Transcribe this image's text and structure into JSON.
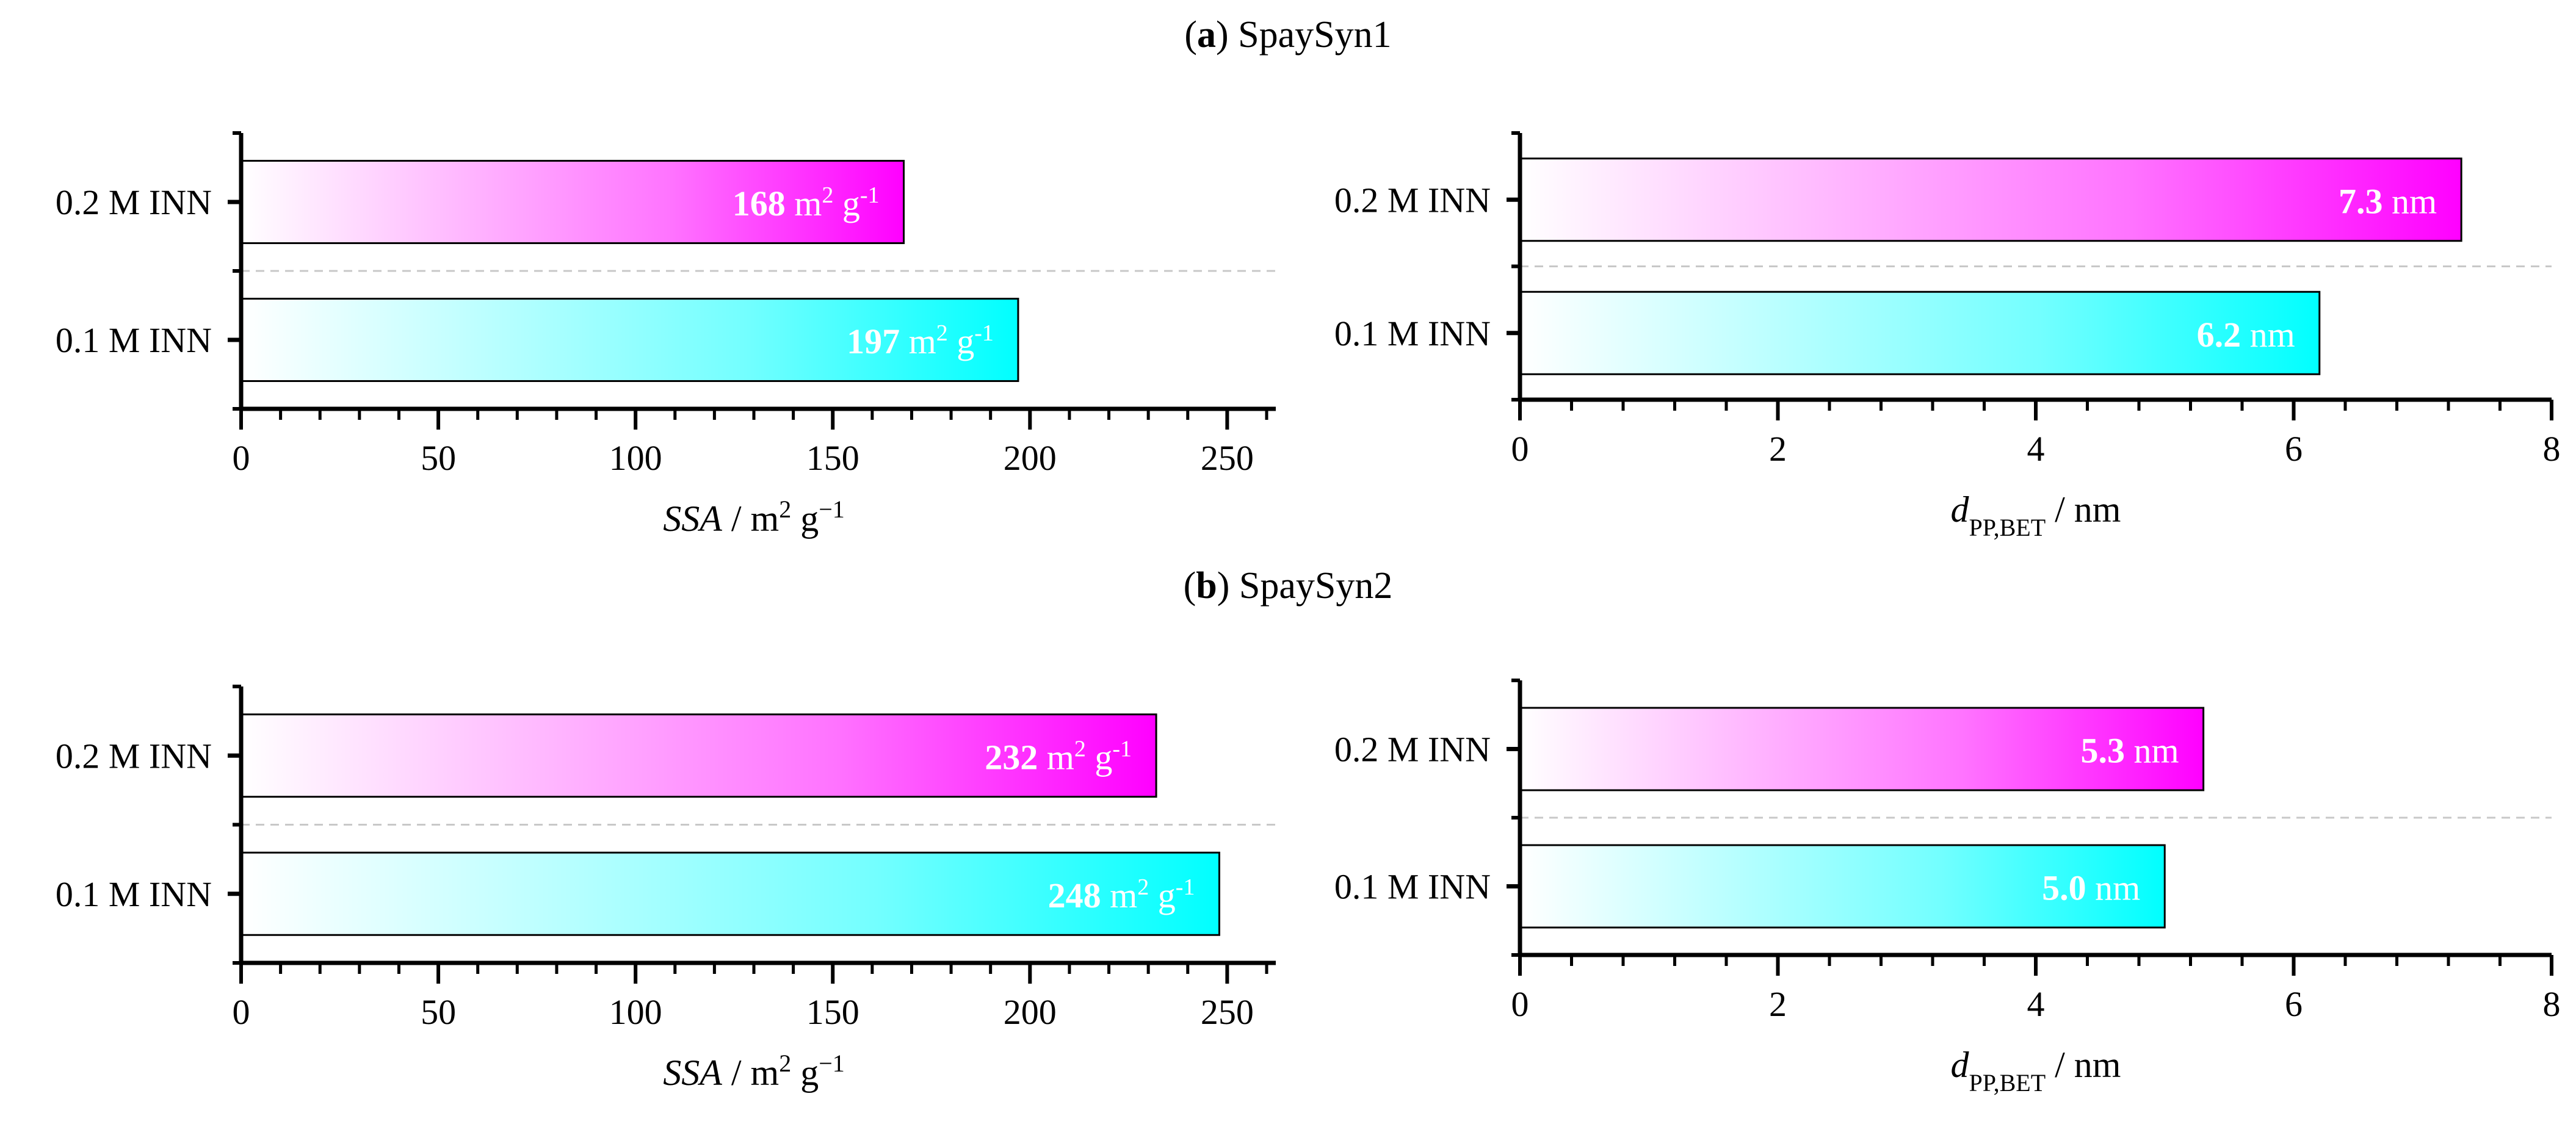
{
  "colors": {
    "magenta": "#ff00ff",
    "cyan": "#00ffff",
    "axis": "#000000",
    "separator": "#c8c8c8"
  },
  "panels": [
    {
      "label_letter": "a",
      "label_text": "SpaySyn1",
      "paren_open": "(",
      "paren_close": ")"
    },
    {
      "label_letter": "b",
      "label_text": "SpaySyn2",
      "paren_open": "(",
      "paren_close": ")"
    }
  ],
  "chart_data": [
    {
      "type": "bar",
      "panel": "a",
      "orientation": "horizontal",
      "categories": [
        "0.2 M INN",
        "0.1 M INN"
      ],
      "values": [
        168,
        197
      ],
      "value_labels": [
        "168",
        "197"
      ],
      "value_unit": "m² g⁻¹",
      "bar_colors": [
        "#ff00ff",
        "#00ffff"
      ],
      "xlim": [
        0,
        260
      ],
      "xticks": [
        0,
        50,
        100,
        150,
        200,
        250
      ],
      "xtick_labels": [
        "0",
        "50",
        "100",
        "150",
        "200",
        "250"
      ],
      "minor_step": 10,
      "xlabel": {
        "italic": "SSA",
        "rest": " / m² g⁻¹"
      }
    },
    {
      "type": "bar",
      "panel": "a",
      "orientation": "horizontal",
      "categories": [
        "0.2 M INN",
        "0.1 M INN"
      ],
      "values": [
        7.3,
        6.2
      ],
      "value_labels": [
        "7.3",
        "6.2"
      ],
      "value_unit": "nm",
      "bar_colors": [
        "#ff00ff",
        "#00ffff"
      ],
      "xlim": [
        0,
        8
      ],
      "xticks": [
        0,
        2,
        4,
        6,
        8
      ],
      "xtick_labels": [
        "0",
        "2",
        "4",
        "6",
        "8"
      ],
      "minor_step": 0.4,
      "xlabel": {
        "italic": "d",
        "sub": "PP,BET",
        "rest": " / nm"
      }
    },
    {
      "type": "bar",
      "panel": "b",
      "orientation": "horizontal",
      "categories": [
        "0.2 M INN",
        "0.1 M INN"
      ],
      "values": [
        232,
        248
      ],
      "value_labels": [
        "232",
        "248"
      ],
      "value_unit": "m² g⁻¹",
      "bar_colors": [
        "#ff00ff",
        "#00ffff"
      ],
      "xlim": [
        0,
        260
      ],
      "xticks": [
        0,
        50,
        100,
        150,
        200,
        250
      ],
      "xtick_labels": [
        "0",
        "50",
        "100",
        "150",
        "200",
        "250"
      ],
      "minor_step": 10,
      "xlabel": {
        "italic": "SSA",
        "rest": " / m² g⁻¹"
      }
    },
    {
      "type": "bar",
      "panel": "b",
      "orientation": "horizontal",
      "categories": [
        "0.2 M INN",
        "0.1 M INN"
      ],
      "values": [
        5.3,
        5.0
      ],
      "value_labels": [
        "5.3",
        "5.0"
      ],
      "value_unit": "nm",
      "bar_colors": [
        "#ff00ff",
        "#00ffff"
      ],
      "xlim": [
        0,
        8
      ],
      "xticks": [
        0,
        2,
        4,
        6,
        8
      ],
      "xtick_labels": [
        "0",
        "2",
        "4",
        "6",
        "8"
      ],
      "minor_step": 0.4,
      "xlabel": {
        "italic": "d",
        "sub": "PP,BET",
        "rest": " / nm"
      }
    }
  ]
}
